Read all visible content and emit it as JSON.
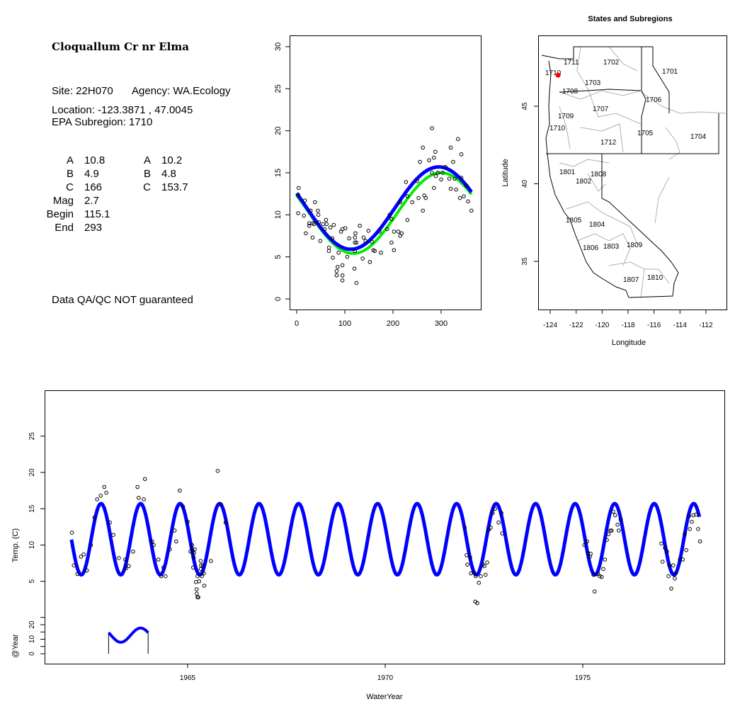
{
  "info": {
    "title": "Cloquallum Cr nr Elma",
    "site": "Site: 22H070",
    "agency": "Agency: WA.Ecology",
    "location": "Location: -123.3871 , 47.0045",
    "subregion": "EPA Subregion: 1710",
    "params_left": [
      {
        "name": "A",
        "value": "10.8"
      },
      {
        "name": "B",
        "value": "4.9"
      },
      {
        "name": "C",
        "value": "166"
      },
      {
        "name": "Mag",
        "value": "2.7"
      },
      {
        "name": "Begin",
        "value": "115.1"
      },
      {
        "name": "End",
        "value": "293"
      }
    ],
    "params_right": [
      {
        "name": "A",
        "value": "10.2"
      },
      {
        "name": "B",
        "value": "4.8"
      },
      {
        "name": "C",
        "value": "153.7"
      }
    ],
    "disclaimer": "Data QA/QC NOT guaranteed",
    "disclaimer_color": "#c0392b"
  },
  "chart_data": [
    {
      "type": "scatter",
      "title": "",
      "xlabel": "",
      "ylabel": "",
      "xlim": [
        -10,
        375
      ],
      "ylim": [
        -1,
        31
      ],
      "xticks": [
        "0",
        "100",
        "200",
        "300"
      ],
      "yticks": [
        "0",
        "5",
        "10",
        "15",
        "20",
        "25",
        "30"
      ],
      "curves": [
        {
          "name": "fit-blue",
          "color": "#0000ff",
          "mean": 10.8,
          "amp": 4.9,
          "peak_day": 295
        },
        {
          "name": "fit-green",
          "color": "#00ee00",
          "mean": 10.2,
          "amp": 4.8,
          "peak_day": 300
        }
      ],
      "points": [
        [
          4,
          13.2
        ],
        [
          3,
          12.4
        ],
        [
          3,
          10.2
        ],
        [
          15,
          9.9
        ],
        [
          17,
          11.7
        ],
        [
          19,
          7.8
        ],
        [
          26,
          9.0
        ],
        [
          26,
          8.7
        ],
        [
          29,
          10.5
        ],
        [
          33,
          7.3
        ],
        [
          33,
          9.0
        ],
        [
          38,
          11.5
        ],
        [
          36,
          8.9
        ],
        [
          44,
          10.5
        ],
        [
          45,
          10.0
        ],
        [
          46,
          9.1
        ],
        [
          49,
          6.9
        ],
        [
          55,
          8.9
        ],
        [
          58,
          8.3
        ],
        [
          61,
          9.4
        ],
        [
          62,
          8.9
        ],
        [
          67,
          6.1
        ],
        [
          67,
          5.7
        ],
        [
          70,
          8.5
        ],
        [
          74,
          7.2
        ],
        [
          75,
          4.9
        ],
        [
          77,
          8.8
        ],
        [
          83,
          3.3
        ],
        [
          83,
          2.8
        ],
        [
          85,
          3.8
        ],
        [
          87,
          5.5
        ],
        [
          92,
          8.0
        ],
        [
          95,
          8.3
        ],
        [
          95,
          4.0
        ],
        [
          95,
          2.8
        ],
        [
          95,
          2.2
        ],
        [
          101,
          8.4
        ],
        [
          105,
          5.0
        ],
        [
          109,
          7.2
        ],
        [
          120,
          3.6
        ],
        [
          121,
          5.7
        ],
        [
          121,
          6.7
        ],
        [
          121,
          7.3
        ],
        [
          122,
          7.8
        ],
        [
          124,
          6.7
        ],
        [
          124,
          1.9
        ],
        [
          131,
          8.7
        ],
        [
          137,
          4.8
        ],
        [
          139,
          7.3
        ],
        [
          143,
          6.9
        ],
        [
          149,
          8.1
        ],
        [
          152,
          4.4
        ],
        [
          156,
          6.8
        ],
        [
          159,
          5.8
        ],
        [
          162,
          5.7
        ],
        [
          172,
          8.0
        ],
        [
          175,
          5.5
        ],
        [
          188,
          8.3
        ],
        [
          193,
          10.0
        ],
        [
          197,
          9.5
        ],
        [
          197,
          6.7
        ],
        [
          202,
          5.8
        ],
        [
          202,
          8.0
        ],
        [
          211,
          8.0
        ],
        [
          215,
          11.5
        ],
        [
          215,
          7.5
        ],
        [
          218,
          7.8
        ],
        [
          227,
          13.9
        ],
        [
          230,
          12.2
        ],
        [
          230,
          9.4
        ],
        [
          240,
          11.5
        ],
        [
          250,
          14.0
        ],
        [
          253,
          12.0
        ],
        [
          256,
          16.3
        ],
        [
          262,
          18.0
        ],
        [
          262,
          10.5
        ],
        [
          265,
          12.3
        ],
        [
          268,
          12.0
        ],
        [
          275,
          16.5
        ],
        [
          281,
          20.3
        ],
        [
          281,
          15.0
        ],
        [
          285,
          16.8
        ],
        [
          285,
          13.2
        ],
        [
          288,
          17.5
        ],
        [
          289,
          14.6
        ],
        [
          293,
          15.0
        ],
        [
          300,
          14.2
        ],
        [
          303,
          15.0
        ],
        [
          309,
          15.7
        ],
        [
          317,
          14.3
        ],
        [
          320,
          18.0
        ],
        [
          320,
          13.1
        ],
        [
          325,
          16.3
        ],
        [
          328,
          14.3
        ],
        [
          331,
          13.0
        ],
        [
          335,
          19.0
        ],
        [
          339,
          12.0
        ],
        [
          342,
          17.2
        ],
        [
          342,
          14.4
        ],
        [
          347,
          12.2
        ],
        [
          352,
          13.5
        ],
        [
          356,
          11.6
        ],
        [
          363,
          10.5
        ]
      ]
    },
    {
      "type": "map",
      "title": "States and Subregions",
      "xlabel": "Longitude",
      "ylabel": "Latitude",
      "xlim": [
        -124.9,
        -110.4
      ],
      "ylim": [
        31.9,
        49.6
      ],
      "xticks": [
        "-124",
        "-122",
        "-120",
        "-118",
        "-116",
        "-114",
        "-112"
      ],
      "yticks": [
        "35",
        "40",
        "45"
      ],
      "site_marker": {
        "lon": -123.3871,
        "lat": 47.0045,
        "color": "#ff0000"
      },
      "subregions": [
        "1701",
        "1702",
        "1703",
        "1704",
        "1705",
        "1706",
        "1707",
        "1708",
        "1709",
        "1710",
        "1710",
        "1711",
        "1712",
        "1801",
        "1802",
        "1803",
        "1804",
        "1805",
        "1806",
        "1807",
        "1808",
        "1809",
        "1810"
      ]
    },
    {
      "type": "line",
      "xlabel": "WaterYear",
      "ylabel": "Temp. (C)",
      "inset_ylabel": "@Year",
      "xlim": [
        1961.3,
        1978.6
      ],
      "ylim": [
        0,
        32
      ],
      "xticks": [
        "1965",
        "1970",
        "1975"
      ],
      "yticks": [
        "5",
        "10",
        "15",
        "20",
        "25"
      ],
      "inset_yticks": [
        "0",
        "10",
        "20"
      ],
      "curve": {
        "color": "#0000ff",
        "start": 1962.06,
        "end": 1977.95
      },
      "inset_curve": {
        "start": 1963.0,
        "end": 1964.0
      },
      "points": [
        [
          1962.07,
          11.7
        ],
        [
          1962.12,
          7.2
        ],
        [
          1962.21,
          6.0
        ],
        [
          1962.3,
          8.4
        ],
        [
          1962.37,
          8.7
        ],
        [
          1962.45,
          6.5
        ],
        [
          1962.55,
          10.0
        ],
        [
          1962.64,
          13.8
        ],
        [
          1962.71,
          16.3
        ],
        [
          1962.8,
          16.8
        ],
        [
          1962.89,
          18.0
        ],
        [
          1962.94,
          17.2
        ],
        [
          1963.03,
          13.1
        ],
        [
          1963.12,
          11.4
        ],
        [
          1963.26,
          8.2
        ],
        [
          1963.42,
          8.0
        ],
        [
          1963.44,
          6.8
        ],
        [
          1963.51,
          7.1
        ],
        [
          1963.62,
          9.1
        ],
        [
          1963.73,
          18.0
        ],
        [
          1963.76,
          16.5
        ],
        [
          1963.89,
          16.3
        ],
        [
          1963.92,
          19.1
        ],
        [
          1964.1,
          10.5
        ],
        [
          1964.14,
          10.0
        ],
        [
          1964.26,
          8.0
        ],
        [
          1964.33,
          5.7
        ],
        [
          1964.39,
          6.9
        ],
        [
          1964.44,
          5.7
        ],
        [
          1964.55,
          9.4
        ],
        [
          1964.67,
          12.0
        ],
        [
          1964.71,
          10.5
        ],
        [
          1964.8,
          17.5
        ],
        [
          1964.88,
          15.3
        ],
        [
          1965.0,
          13.2
        ],
        [
          1965.07,
          9.1
        ],
        [
          1965.11,
          10.0
        ],
        [
          1965.12,
          9.3
        ],
        [
          1965.15,
          8.3
        ],
        [
          1965.16,
          8.9
        ],
        [
          1965.18,
          9.4
        ],
        [
          1965.14,
          6.9
        ],
        [
          1965.21,
          4.9
        ],
        [
          1965.23,
          3.9
        ],
        [
          1965.23,
          3.3
        ],
        [
          1965.25,
          2.8
        ],
        [
          1965.27,
          2.8
        ],
        [
          1965.25,
          5.7
        ],
        [
          1965.29,
          5.0
        ],
        [
          1965.33,
          6.7
        ],
        [
          1965.33,
          7.8
        ],
        [
          1965.34,
          7.2
        ],
        [
          1965.36,
          5.7
        ],
        [
          1965.39,
          7.2
        ],
        [
          1965.41,
          6.1
        ],
        [
          1965.42,
          4.4
        ],
        [
          1965.59,
          7.8
        ],
        [
          1965.76,
          20.2
        ],
        [
          1965.84,
          15.6
        ],
        [
          1965.96,
          13.1
        ],
        [
          1972.01,
          12.4
        ],
        [
          1972.06,
          8.6
        ],
        [
          1972.15,
          8.3
        ],
        [
          1972.08,
          7.3
        ],
        [
          1972.17,
          6.1
        ],
        [
          1972.24,
          6.2
        ],
        [
          1972.29,
          5.7
        ],
        [
          1972.42,
          5.7
        ],
        [
          1972.54,
          5.9
        ],
        [
          1972.37,
          4.8
        ],
        [
          1972.28,
          2.2
        ],
        [
          1972.33,
          2.0
        ],
        [
          1972.47,
          7.3
        ],
        [
          1972.51,
          7.1
        ],
        [
          1972.58,
          7.6
        ],
        [
          1972.67,
          12.4
        ],
        [
          1972.62,
          12.1
        ],
        [
          1972.72,
          14.4
        ],
        [
          1972.78,
          15.0
        ],
        [
          1972.94,
          14.4
        ],
        [
          1972.87,
          13.1
        ],
        [
          1972.96,
          11.6
        ],
        [
          1975.11,
          10.5
        ],
        [
          1975.04,
          10.0
        ],
        [
          1975.13,
          8.9
        ],
        [
          1975.2,
          8.8
        ],
        [
          1975.18,
          8.4
        ],
        [
          1975.27,
          5.9
        ],
        [
          1975.39,
          6.0
        ],
        [
          1975.43,
          5.7
        ],
        [
          1975.48,
          5.6
        ],
        [
          1975.3,
          3.6
        ],
        [
          1975.52,
          6.7
        ],
        [
          1975.56,
          8.0
        ],
        [
          1975.61,
          10.7
        ],
        [
          1975.65,
          11.5
        ],
        [
          1975.7,
          12.0
        ],
        [
          1975.73,
          12.0
        ],
        [
          1975.88,
          12.8
        ],
        [
          1975.91,
          12.0
        ],
        [
          1975.96,
          13.5
        ],
        [
          1975.77,
          14.6
        ],
        [
          1975.82,
          14.1
        ],
        [
          1976.99,
          10.2
        ],
        [
          1977.08,
          9.6
        ],
        [
          1977.13,
          9.1
        ],
        [
          1977.02,
          7.7
        ],
        [
          1977.19,
          7.2
        ],
        [
          1977.29,
          7.2
        ],
        [
          1977.17,
          5.7
        ],
        [
          1977.35,
          6.1
        ],
        [
          1977.33,
          5.4
        ],
        [
          1977.24,
          4.0
        ],
        [
          1977.46,
          8.0
        ],
        [
          1977.53,
          8.0
        ],
        [
          1977.62,
          9.3
        ],
        [
          1977.58,
          11.5
        ],
        [
          1977.71,
          12.2
        ],
        [
          1977.76,
          13.2
        ],
        [
          1977.69,
          14.0
        ],
        [
          1977.8,
          14.1
        ],
        [
          1977.87,
          14.2
        ],
        [
          1977.92,
          12.2
        ],
        [
          1977.97,
          10.5
        ]
      ]
    }
  ]
}
